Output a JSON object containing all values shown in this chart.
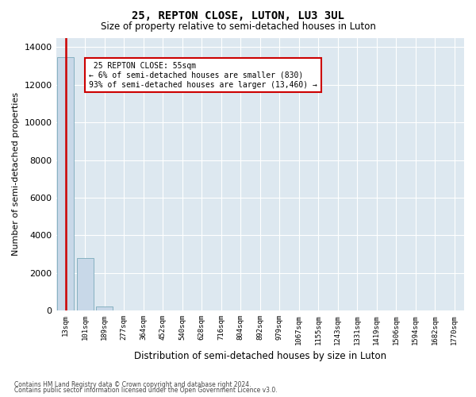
{
  "title1": "25, REPTON CLOSE, LUTON, LU3 3UL",
  "title2": "Size of property relative to semi-detached houses in Luton",
  "xlabel": "Distribution of semi-detached houses by size in Luton",
  "ylabel": "Number of semi-detached properties",
  "property_label": "25 REPTON CLOSE: 55sqm",
  "pct_smaller": 6,
  "count_smaller": 830,
  "pct_larger": 93,
  "count_larger": 13460,
  "bin_labels": [
    "13sqm",
    "101sqm",
    "189sqm",
    "277sqm",
    "364sqm",
    "452sqm",
    "540sqm",
    "628sqm",
    "716sqm",
    "804sqm",
    "892sqm",
    "979sqm",
    "1067sqm",
    "1155sqm",
    "1243sqm",
    "1331sqm",
    "1419sqm",
    "1506sqm",
    "1594sqm",
    "1682sqm",
    "1770sqm"
  ],
  "bin_values": [
    13460,
    2800,
    200,
    8,
    4,
    2,
    1,
    1,
    1,
    0,
    0,
    0,
    0,
    0,
    0,
    0,
    0,
    0,
    0,
    0,
    0
  ],
  "bar_color": "#c8d8e8",
  "bar_edge_color": "#7aaabb",
  "redline_color": "#cc0000",
  "annotation_box_color": "#cc0000",
  "background_color": "#dde8f0",
  "ylim": [
    0,
    14500
  ],
  "yticks": [
    0,
    2000,
    4000,
    6000,
    8000,
    10000,
    12000,
    14000
  ],
  "footer1": "Contains HM Land Registry data © Crown copyright and database right 2024.",
  "footer2": "Contains public sector information licensed under the Open Government Licence v3.0."
}
